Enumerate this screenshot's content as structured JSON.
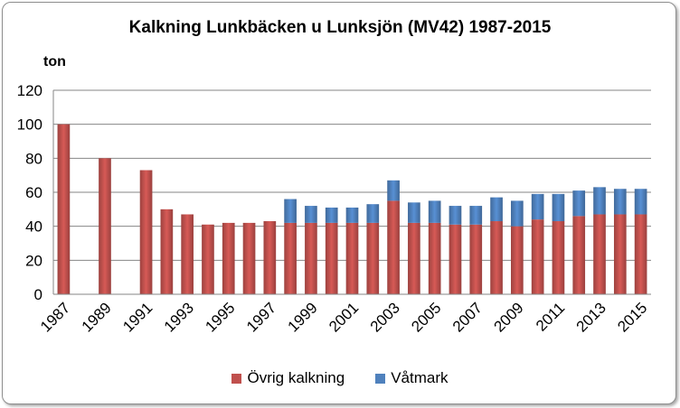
{
  "chart_data": {
    "type": "bar",
    "stacked": true,
    "title": "Kalkning Lunkbäcken u Lunksjön (MV42) 1987-2015",
    "ylabel": "ton",
    "xlabel": "",
    "ylim": [
      0,
      120
    ],
    "yticks": [
      0,
      20,
      40,
      60,
      80,
      100,
      120
    ],
    "grid": true,
    "legend_position": "bottom",
    "categories": [
      "1987",
      "1988",
      "1989",
      "1990",
      "1991",
      "1992",
      "1993",
      "1994",
      "1995",
      "1996",
      "1997",
      "1998",
      "1999",
      "2000",
      "2001",
      "2002",
      "2003",
      "2004",
      "2005",
      "2006",
      "2007",
      "2008",
      "2009",
      "2010",
      "2011",
      "2012",
      "2013",
      "2014",
      "2015"
    ],
    "xtick_labels": [
      "1987",
      "1989",
      "1991",
      "1993",
      "1995",
      "1997",
      "1999",
      "2001",
      "2003",
      "2005",
      "2007",
      "2009",
      "2011",
      "2013",
      "2015"
    ],
    "series": [
      {
        "name": "Övrig kalkning",
        "color": "#c0504d",
        "values": [
          100,
          0,
          80,
          0,
          73,
          50,
          47,
          41,
          42,
          42,
          43,
          42,
          42,
          42,
          42,
          42,
          55,
          42,
          42,
          41,
          41,
          43,
          40,
          44,
          43,
          46,
          47,
          47,
          47
        ]
      },
      {
        "name": "Våtmark",
        "color": "#4f81bd",
        "values": [
          0,
          0,
          0,
          0,
          0,
          0,
          0,
          0,
          0,
          0,
          0,
          14,
          10,
          9,
          9,
          11,
          12,
          12,
          13,
          11,
          11,
          14,
          15,
          15,
          16,
          15,
          16,
          15,
          15
        ]
      }
    ]
  }
}
